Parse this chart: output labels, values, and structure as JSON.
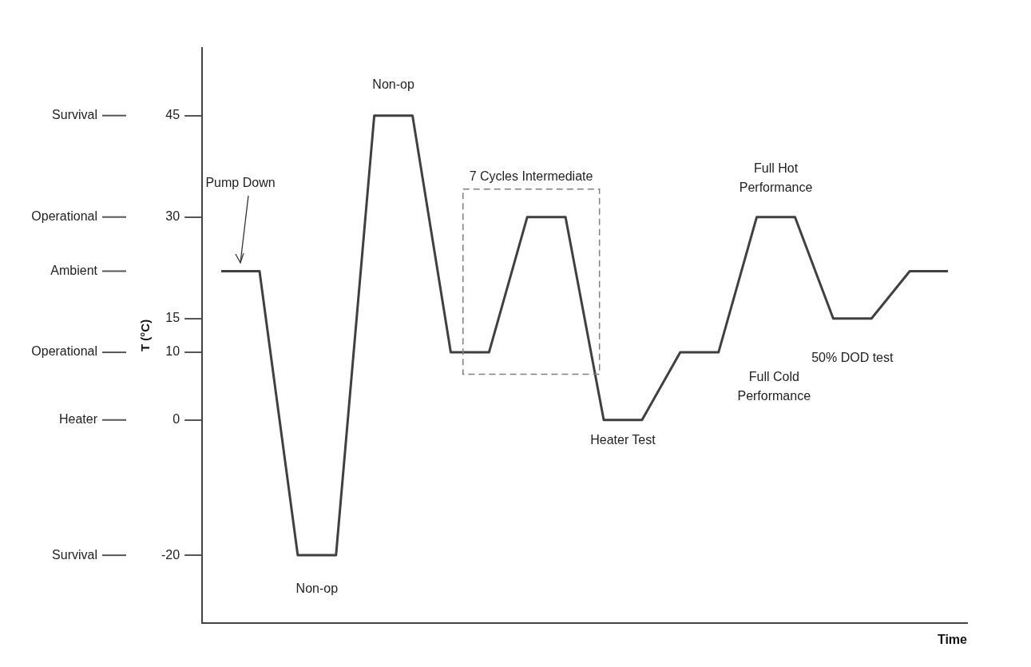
{
  "chart_data": {
    "type": "line",
    "xlabel": "Time",
    "ylabel": "T (°C)",
    "categories": [
      null,
      null,
      null,
      null,
      null,
      null,
      null,
      null,
      null,
      null,
      null,
      null,
      null,
      null,
      null,
      null,
      null,
      null,
      null,
      null
    ],
    "series": [
      {
        "color": "#404040",
        "values": [
          22,
          22,
          -20,
          -20,
          45,
          45,
          10,
          10,
          30,
          30,
          0,
          0,
          10,
          10,
          30,
          30,
          15,
          15,
          22,
          22
        ]
      }
    ],
    "ylim": [
      -30,
      55
    ],
    "yticks": [
      -20,
      0,
      10,
      15,
      30,
      45
    ],
    "tick_labels": "y",
    "grid": false,
    "legend": false,
    "marker": "none",
    "line_style": "solid",
    "annotations": [
      "Pump Down",
      "Non-op",
      "Non-op",
      "Heater Test",
      "Full Cold Performance",
      "Full Hot Performance",
      "50% DOD test",
      "7 Cycles Intermediate"
    ],
    "ref_lines": [
      {
        "axis": "y",
        "value": -20,
        "label": "Survival"
      },
      {
        "axis": "y",
        "value": 0,
        "label": "Heater"
      },
      {
        "axis": "y",
        "value": 10,
        "label": "Operational"
      },
      {
        "axis": "y",
        "value": 22,
        "label": "Ambient"
      },
      {
        "axis": "y",
        "value": 30,
        "label": "Operational"
      },
      {
        "axis": "y",
        "value": 45,
        "label": "Survival"
      }
    ]
  }
}
